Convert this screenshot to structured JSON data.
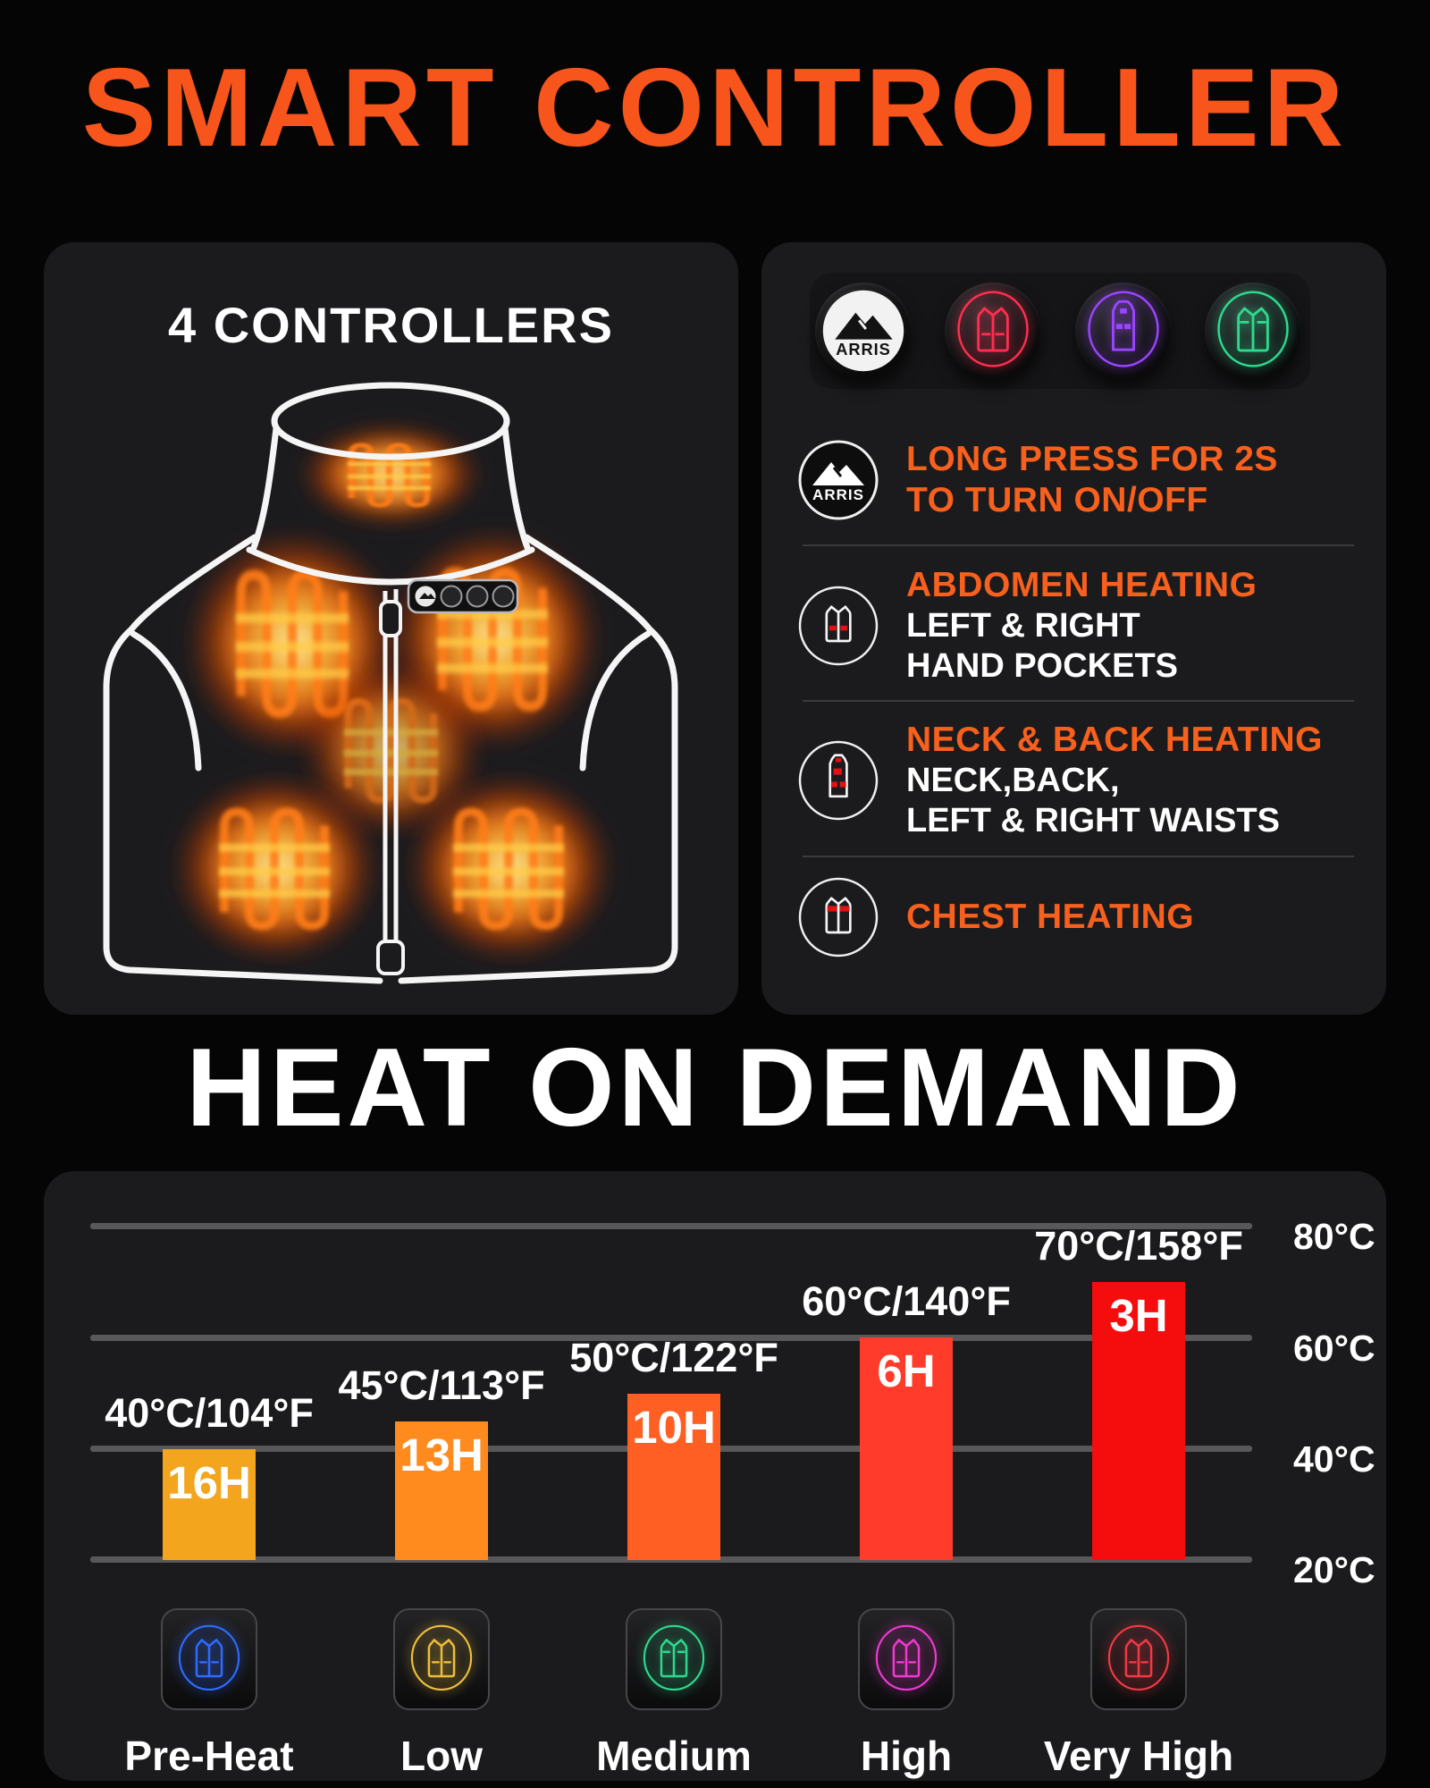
{
  "brand": "ARRIS",
  "colors": {
    "page_bg": "#050506",
    "panel_bg": "#1B1B1D",
    "accent_orange": "#F8551C",
    "heading_orange": "#F8601E",
    "grid_line": "#58585A",
    "heat_glow": "#FF7A12",
    "patch_red": "#E31111"
  },
  "header": {
    "title": "SMART CONTROLLER"
  },
  "left_panel": {
    "title": "4 CONTROLLERS"
  },
  "right_panel": {
    "mode_buttons": [
      {
        "name": "power-button",
        "type": "arris-logo"
      },
      {
        "name": "abdomen-mode-button",
        "color": "#FF2E4E"
      },
      {
        "name": "neck-back-mode-button",
        "color": "#9B45FF"
      },
      {
        "name": "chest-mode-button",
        "color": "#2FD98F"
      }
    ],
    "rows": [
      {
        "heading_lines": [
          "LONG PRESS FOR 2S",
          "TO TURN ON/OFF"
        ],
        "body_lines": []
      },
      {
        "heading_lines": [
          "ABDOMEN HEATING"
        ],
        "body_lines": [
          "LEFT & RIGHT",
          "HAND POCKETS"
        ]
      },
      {
        "heading_lines": [
          "NECK & BACK HEATING"
        ],
        "body_lines": [
          "NECK,BACK,",
          "LEFT & RIGHT WAISTS"
        ]
      },
      {
        "heading_lines": [
          "CHEST HEATING"
        ],
        "body_lines": []
      }
    ]
  },
  "heat_section": {
    "title": "HEAT ON DEMAND"
  },
  "chart_data": {
    "type": "bar",
    "title": "HEAT ON DEMAND",
    "categories": [
      "Pre-Heat",
      "Low",
      "Medium",
      "High",
      "Very High"
    ],
    "series": [
      {
        "name": "temperature_c",
        "values": [
          40,
          45,
          50,
          60,
          70
        ]
      },
      {
        "name": "temperature_f",
        "values": [
          104,
          113,
          122,
          140,
          158
        ]
      },
      {
        "name": "runtime_hours",
        "values": [
          16,
          13,
          10,
          6,
          3
        ]
      }
    ],
    "temp_labels": [
      "40°C/104°F",
      "45°C/113°F",
      "50°C/122°F",
      "60°C/140°F",
      "70°C/158°F"
    ],
    "bar_labels": [
      "16H",
      "13H",
      "10H",
      "6H",
      "3H"
    ],
    "bar_colors": [
      "#F2A51D",
      "#FF8B1F",
      "#FF5F22",
      "#FF3C2B",
      "#F50D0D"
    ],
    "icon_colors": [
      "#2F6BFF",
      "#EDBE3E",
      "#2FD98F",
      "#EE3BD0",
      "#F03A44"
    ],
    "y_ticks": [
      "80°C",
      "60°C",
      "40°C",
      "20°C"
    ],
    "ylim": [
      20,
      80
    ],
    "grid": true,
    "legend_position": "none",
    "xlabel": "",
    "ylabel": ""
  }
}
